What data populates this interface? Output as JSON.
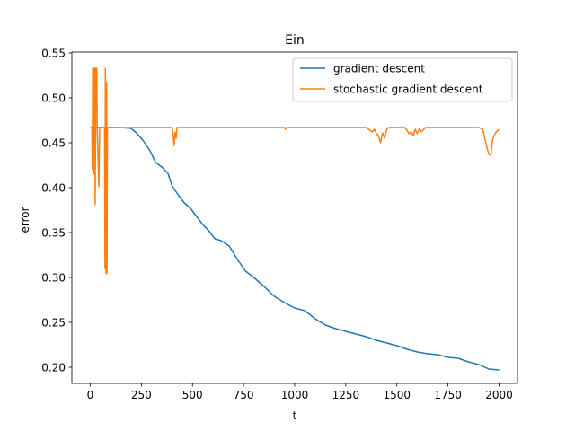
{
  "chart_data": {
    "type": "line",
    "title": "Ein",
    "xlabel": "t",
    "ylabel": "error",
    "xlim": [
      -90,
      2090
    ],
    "ylim": [
      0.182,
      0.551
    ],
    "xticks": [
      0,
      250,
      500,
      750,
      1000,
      1250,
      1500,
      1750,
      2000
    ],
    "yticks": [
      0.2,
      0.25,
      0.3,
      0.35,
      0.4,
      0.45,
      0.5,
      0.55
    ],
    "ytick_labels": [
      "0.20",
      "0.25",
      "0.30",
      "0.35",
      "0.40",
      "0.45",
      "0.50",
      "0.55"
    ],
    "grid": false,
    "legend_position": "top-right",
    "series": [
      {
        "name": "gradient descent",
        "color": "#1f77b4",
        "x": [
          0,
          50,
          100,
          150,
          200,
          230,
          260,
          290,
          320,
          350,
          380,
          400,
          430,
          460,
          490,
          520,
          550,
          580,
          610,
          640,
          680,
          720,
          760,
          800,
          850,
          900,
          950,
          1000,
          1050,
          1100,
          1150,
          1200,
          1250,
          1300,
          1350,
          1400,
          1450,
          1500,
          1550,
          1600,
          1650,
          1700,
          1750,
          1800,
          1850,
          1900,
          1950,
          2000
        ],
        "y": [
          0.467,
          0.467,
          0.467,
          0.467,
          0.466,
          0.46,
          0.452,
          0.442,
          0.428,
          0.423,
          0.416,
          0.402,
          0.392,
          0.383,
          0.377,
          0.368,
          0.359,
          0.352,
          0.343,
          0.341,
          0.335,
          0.32,
          0.307,
          0.3,
          0.29,
          0.279,
          0.272,
          0.266,
          0.263,
          0.254,
          0.247,
          0.243,
          0.24,
          0.237,
          0.234,
          0.23,
          0.227,
          0.224,
          0.22,
          0.217,
          0.215,
          0.214,
          0.211,
          0.21,
          0.206,
          0.203,
          0.198,
          0.197
        ]
      },
      {
        "name": "stochastic gradient descent",
        "color": "#ff7f0e",
        "x": [
          0,
          8,
          10,
          12,
          14,
          16,
          18,
          22,
          24,
          28,
          30,
          32,
          34,
          38,
          42,
          46,
          50,
          58,
          64,
          70,
          72,
          74,
          76,
          78,
          80,
          82,
          84,
          86,
          88,
          90,
          94,
          100,
          200,
          300,
          400,
          405,
          410,
          415,
          420,
          425,
          430,
          500,
          700,
          950,
          955,
          960,
          1000,
          1200,
          1350,
          1380,
          1390,
          1400,
          1410,
          1420,
          1430,
          1440,
          1450,
          1460,
          1500,
          1540,
          1560,
          1570,
          1580,
          1590,
          1600,
          1610,
          1620,
          1640,
          1660,
          1700,
          1800,
          1900,
          1920,
          1930,
          1940,
          1950,
          1960,
          1965,
          1970,
          1980,
          1990,
          2000
        ],
        "y": [
          0.467,
          0.467,
          0.42,
          0.533,
          0.533,
          0.415,
          0.533,
          0.533,
          0.381,
          0.533,
          0.533,
          0.533,
          0.467,
          0.435,
          0.401,
          0.467,
          0.467,
          0.467,
          0.467,
          0.467,
          0.31,
          0.533,
          0.315,
          0.304,
          0.517,
          0.305,
          0.466,
          0.467,
          0.467,
          0.467,
          0.467,
          0.467,
          0.467,
          0.467,
          0.467,
          0.46,
          0.447,
          0.462,
          0.455,
          0.467,
          0.467,
          0.467,
          0.467,
          0.467,
          0.465,
          0.467,
          0.467,
          0.467,
          0.467,
          0.462,
          0.465,
          0.46,
          0.458,
          0.45,
          0.461,
          0.455,
          0.465,
          0.467,
          0.467,
          0.467,
          0.46,
          0.462,
          0.458,
          0.465,
          0.46,
          0.466,
          0.462,
          0.467,
          0.467,
          0.467,
          0.467,
          0.467,
          0.465,
          0.455,
          0.445,
          0.437,
          0.436,
          0.448,
          0.455,
          0.46,
          0.463,
          0.465
        ]
      }
    ]
  }
}
